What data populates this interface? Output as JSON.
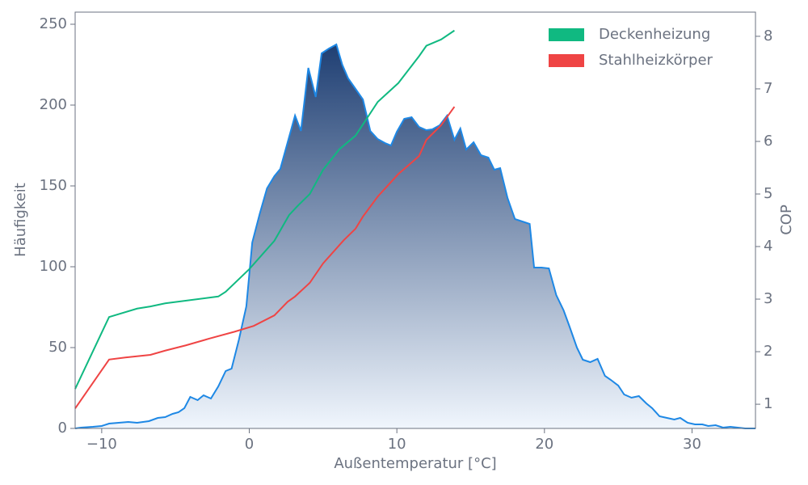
{
  "chart_data": {
    "type": "area",
    "xlabel": "Außentemperatur [°C]",
    "ylabel": "Häufigkeit",
    "y2label": "COP",
    "xlim": [
      -11.8,
      34.3
    ],
    "ylim": [
      0,
      257.5
    ],
    "y2lim": [
      0.54,
      8.46
    ],
    "xticks": [
      {
        "value": -10,
        "label": "−10"
      },
      0,
      10,
      20,
      30
    ],
    "yticks": [
      0,
      50,
      100,
      150,
      200,
      250
    ],
    "y2ticks": [
      1,
      2,
      3,
      4,
      5,
      6,
      7,
      8
    ],
    "legend": "upper right",
    "series": [
      {
        "type": "area",
        "color": "#1e88e5",
        "gradient": [
          "#1f3f73",
          "#f0f6fd"
        ],
        "x": [
          -11.8,
          -11.4,
          -10.6,
          -10,
          -9.5,
          -8.2,
          -7.6,
          -6.8,
          -6.2,
          -5.7,
          -5.2,
          -4.8,
          -4.4,
          -4.0,
          -3.5,
          -3.1,
          -2.6,
          -2.1,
          -1.6,
          -1.2,
          -0.7,
          -0.2,
          0.2,
          0.7,
          1.2,
          1.7,
          2.1,
          2.6,
          3.1,
          3.5,
          4.0,
          4.5,
          4.9,
          5.4,
          5.9,
          6.3,
          6.7,
          7.2,
          7.7,
          8.2,
          8.7,
          9.2,
          9.6,
          10.0,
          10.5,
          11.0,
          11.5,
          12.0,
          12.4,
          12.9,
          13.4,
          13.9,
          14.3,
          14.7,
          15.2,
          15.7,
          16.2,
          16.6,
          17.0,
          17.5,
          18.0,
          18.5,
          19.0,
          19.3,
          19.8,
          20.3,
          20.8,
          21.3,
          21.7,
          22.2,
          22.6,
          23.1,
          23.6,
          24.1,
          24.5,
          25.0,
          25.4,
          25.9,
          26.4,
          26.9,
          27.3,
          27.8,
          28.3,
          28.8,
          29.2,
          29.7,
          30.2,
          30.7,
          31.1,
          31.6,
          32.1,
          32.6,
          33.1,
          33.6,
          34.3
        ],
        "values": [
          0,
          0.5,
          1,
          1.5,
          3,
          4,
          3.5,
          4.5,
          6.5,
          7,
          9,
          10,
          12.5,
          19.5,
          17.5,
          20.5,
          18.5,
          26,
          35.5,
          37,
          55,
          75.5,
          115,
          132.5,
          148.5,
          156,
          160.5,
          177,
          193.5,
          184,
          223,
          205,
          232,
          235,
          237.5,
          225,
          216.5,
          210,
          203.5,
          184,
          179,
          176.5,
          175,
          183.5,
          191.5,
          192.5,
          186.5,
          184.5,
          185,
          187.5,
          193.5,
          178.5,
          185.5,
          172.5,
          177,
          169,
          167.5,
          160,
          161,
          142.5,
          129.5,
          128,
          126.5,
          99.5,
          99.5,
          99,
          82.5,
          73,
          63,
          50,
          42.5,
          41,
          43,
          32.5,
          30,
          26.5,
          21,
          19,
          20,
          15.5,
          12.5,
          7.5,
          6.5,
          5.5,
          6.5,
          3.5,
          2.5,
          2.5,
          1.5,
          2,
          0.5,
          1,
          0.5,
          0,
          0
        ]
      },
      {
        "type": "line",
        "axis": "y2",
        "name": "Deckenheizung",
        "color": "#10b981",
        "x": [
          -11.8,
          -9.5,
          -7.6,
          -6.7,
          -5.7,
          -2.1,
          -1.6,
          0,
          1.7,
          2.7,
          3.3,
          4.1,
          5.0,
          6.1,
          7.2,
          8.7,
          10.1,
          11.5,
          12.0,
          13.0,
          13.9
        ],
        "values": [
          1.29,
          2.66,
          2.82,
          2.86,
          2.92,
          3.05,
          3.14,
          3.57,
          4.11,
          4.6,
          4.78,
          5.0,
          5.46,
          5.85,
          6.11,
          6.75,
          7.11,
          7.62,
          7.82,
          7.94,
          8.11
        ]
      },
      {
        "type": "line",
        "axis": "y2",
        "name": "Stahlheizkörper",
        "color": "#ef4444",
        "x": [
          -11.8,
          -9.5,
          -8.4,
          -6.7,
          -5.7,
          -4.3,
          -2.7,
          -1.0,
          0.3,
          1.7,
          2.6,
          3.1,
          4.1,
          5.0,
          6.4,
          7.2,
          7.7,
          8.7,
          10.1,
          11.5,
          12.0,
          13.0,
          13.9
        ],
        "values": [
          0.92,
          1.85,
          1.89,
          1.94,
          2.02,
          2.12,
          2.25,
          2.38,
          2.49,
          2.69,
          2.95,
          3.05,
          3.31,
          3.68,
          4.12,
          4.34,
          4.57,
          4.95,
          5.38,
          5.72,
          6.03,
          6.31,
          6.66
        ]
      }
    ]
  }
}
